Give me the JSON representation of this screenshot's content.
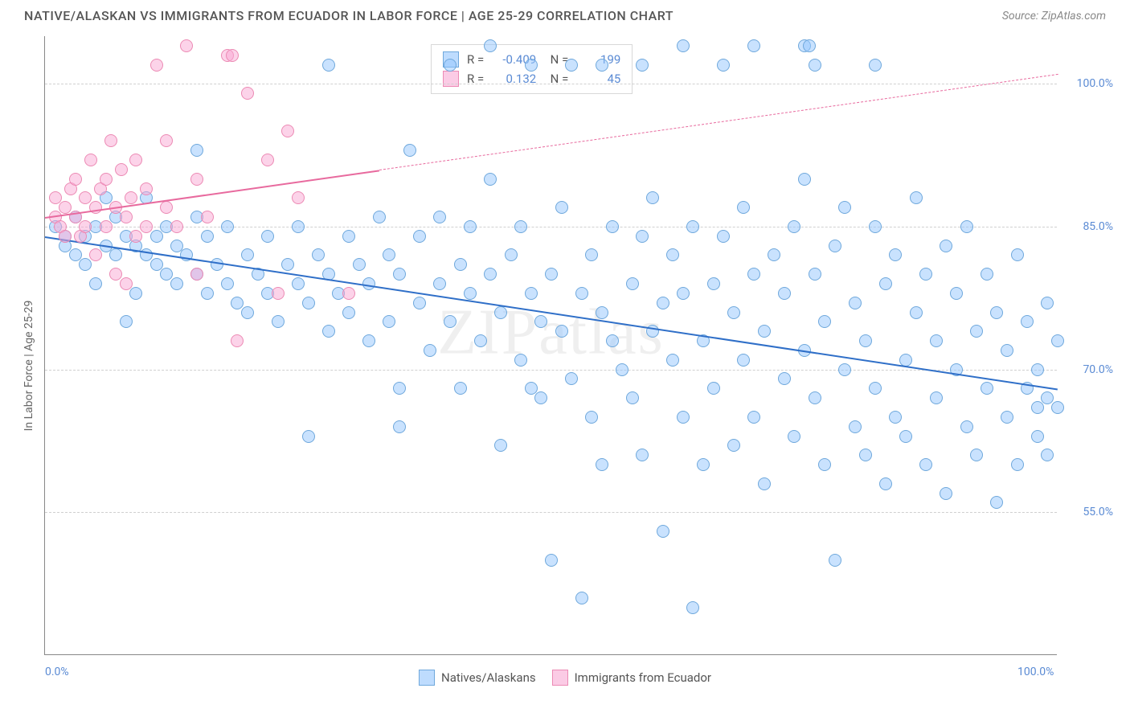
{
  "header": {
    "title": "NATIVE/ALASKAN VS IMMIGRANTS FROM ECUADOR IN LABOR FORCE | AGE 25-29 CORRELATION CHART",
    "source": "Source: ZipAtlas.com"
  },
  "chart": {
    "type": "scatter",
    "ylabel": "In Labor Force | Age 25-29",
    "watermark": "ZIPatlas",
    "background_color": "#ffffff",
    "grid_color": "#d0d0d0",
    "axis_color": "#888888",
    "xlim": [
      0,
      100
    ],
    "ylim": [
      40,
      105
    ],
    "xticks": [
      {
        "value": 0,
        "label": "0.0%"
      },
      {
        "value": 100,
        "label": "100.0%"
      }
    ],
    "yticks": [
      {
        "value": 55,
        "label": "55.0%"
      },
      {
        "value": 70,
        "label": "70.0%"
      },
      {
        "value": 85,
        "label": "85.0%"
      },
      {
        "value": 100,
        "label": "100.0%"
      }
    ],
    "series": [
      {
        "name": "Natives/Alaskans",
        "color_fill": "rgba(147,197,253,0.5)",
        "color_stroke": "#6fa8dc",
        "marker_size": 16,
        "correlation_R": "-0.409",
        "N": "199",
        "trend": {
          "x1": 0,
          "y1": 84,
          "x2": 100,
          "y2": 68,
          "color": "#2f6fc8",
          "solid_x2": 100
        },
        "points": [
          [
            1,
            85
          ],
          [
            2,
            84
          ],
          [
            2,
            83
          ],
          [
            3,
            86
          ],
          [
            3,
            82
          ],
          [
            4,
            84
          ],
          [
            4,
            81
          ],
          [
            5,
            85
          ],
          [
            5,
            79
          ],
          [
            6,
            83
          ],
          [
            6,
            88
          ],
          [
            7,
            82
          ],
          [
            7,
            86
          ],
          [
            8,
            84
          ],
          [
            8,
            75
          ],
          [
            9,
            83
          ],
          [
            9,
            78
          ],
          [
            10,
            82
          ],
          [
            10,
            88
          ],
          [
            11,
            81
          ],
          [
            11,
            84
          ],
          [
            12,
            80
          ],
          [
            12,
            85
          ],
          [
            13,
            79
          ],
          [
            13,
            83
          ],
          [
            14,
            82
          ],
          [
            15,
            80
          ],
          [
            15,
            86
          ],
          [
            16,
            78
          ],
          [
            16,
            84
          ],
          [
            17,
            81
          ],
          [
            18,
            79
          ],
          [
            18,
            85
          ],
          [
            19,
            77
          ],
          [
            20,
            82
          ],
          [
            20,
            76
          ],
          [
            21,
            80
          ],
          [
            22,
            78
          ],
          [
            22,
            84
          ],
          [
            23,
            75
          ],
          [
            24,
            81
          ],
          [
            25,
            79
          ],
          [
            25,
            85
          ],
          [
            26,
            77
          ],
          [
            26,
            63
          ],
          [
            27,
            82
          ],
          [
            28,
            74
          ],
          [
            28,
            80
          ],
          [
            29,
            78
          ],
          [
            30,
            76
          ],
          [
            30,
            84
          ],
          [
            31,
            81
          ],
          [
            32,
            73
          ],
          [
            32,
            79
          ],
          [
            33,
            86
          ],
          [
            34,
            75
          ],
          [
            34,
            82
          ],
          [
            35,
            80
          ],
          [
            35,
            68
          ],
          [
            36,
            93
          ],
          [
            37,
            77
          ],
          [
            37,
            84
          ],
          [
            38,
            72
          ],
          [
            39,
            79
          ],
          [
            39,
            86
          ],
          [
            40,
            75
          ],
          [
            41,
            81
          ],
          [
            41,
            68
          ],
          [
            42,
            78
          ],
          [
            42,
            85
          ],
          [
            43,
            73
          ],
          [
            44,
            80
          ],
          [
            44,
            90
          ],
          [
            45,
            76
          ],
          [
            45,
            62
          ],
          [
            46,
            82
          ],
          [
            47,
            71
          ],
          [
            47,
            85
          ],
          [
            48,
            78
          ],
          [
            48,
            68
          ],
          [
            49,
            67
          ],
          [
            49,
            75
          ],
          [
            50,
            50
          ],
          [
            50,
            80
          ],
          [
            51,
            74
          ],
          [
            51,
            87
          ],
          [
            52,
            69
          ],
          [
            53,
            78
          ],
          [
            53,
            46
          ],
          [
            54,
            65
          ],
          [
            54,
            82
          ],
          [
            55,
            76
          ],
          [
            55,
            60
          ],
          [
            56,
            73
          ],
          [
            56,
            85
          ],
          [
            57,
            70
          ],
          [
            58,
            79
          ],
          [
            58,
            67
          ],
          [
            59,
            61
          ],
          [
            59,
            84
          ],
          [
            60,
            74
          ],
          [
            60,
            88
          ],
          [
            61,
            77
          ],
          [
            61,
            53
          ],
          [
            62,
            71
          ],
          [
            62,
            82
          ],
          [
            63,
            65
          ],
          [
            63,
            78
          ],
          [
            64,
            85
          ],
          [
            64,
            45
          ],
          [
            65,
            73
          ],
          [
            65,
            60
          ],
          [
            66,
            79
          ],
          [
            66,
            68
          ],
          [
            67,
            84
          ],
          [
            68,
            76
          ],
          [
            68,
            62
          ],
          [
            69,
            71
          ],
          [
            69,
            87
          ],
          [
            70,
            104
          ],
          [
            70,
            65
          ],
          [
            70,
            80
          ],
          [
            71,
            74
          ],
          [
            71,
            58
          ],
          [
            72,
            82
          ],
          [
            73,
            69
          ],
          [
            73,
            78
          ],
          [
            74,
            85
          ],
          [
            74,
            63
          ],
          [
            75,
            72
          ],
          [
            75,
            90
          ],
          [
            76,
            67
          ],
          [
            76,
            80
          ],
          [
            77,
            75
          ],
          [
            77,
            60
          ],
          [
            78,
            83
          ],
          [
            78,
            50
          ],
          [
            79,
            70
          ],
          [
            79,
            87
          ],
          [
            80,
            64
          ],
          [
            80,
            77
          ],
          [
            81,
            73
          ],
          [
            81,
            61
          ],
          [
            82,
            85
          ],
          [
            82,
            68
          ],
          [
            83,
            79
          ],
          [
            83,
            58
          ],
          [
            84,
            65
          ],
          [
            84,
            82
          ],
          [
            85,
            71
          ],
          [
            85,
            63
          ],
          [
            86,
            76
          ],
          [
            86,
            88
          ],
          [
            87,
            60
          ],
          [
            87,
            80
          ],
          [
            88,
            67
          ],
          [
            88,
            73
          ],
          [
            89,
            83
          ],
          [
            89,
            57
          ],
          [
            90,
            70
          ],
          [
            90,
            78
          ],
          [
            91,
            64
          ],
          [
            91,
            85
          ],
          [
            92,
            74
          ],
          [
            92,
            61
          ],
          [
            93,
            68
          ],
          [
            93,
            80
          ],
          [
            94,
            56
          ],
          [
            94,
            76
          ],
          [
            95,
            65
          ],
          [
            95,
            72
          ],
          [
            96,
            82
          ],
          [
            96,
            60
          ],
          [
            97,
            68
          ],
          [
            97,
            75
          ],
          [
            98,
            70
          ],
          [
            98,
            63
          ],
          [
            98,
            66
          ],
          [
            99,
            67
          ],
          [
            99,
            77
          ],
          [
            99,
            61
          ],
          [
            100,
            66
          ],
          [
            100,
            73
          ],
          [
            63,
            104
          ],
          [
            75,
            104
          ],
          [
            75.5,
            104
          ],
          [
            44,
            104
          ],
          [
            15,
            93
          ],
          [
            35,
            64
          ],
          [
            28,
            102
          ],
          [
            55,
            102
          ],
          [
            48,
            102
          ],
          [
            40,
            102
          ],
          [
            52,
            102
          ],
          [
            59,
            102
          ],
          [
            67,
            102
          ],
          [
            76,
            102
          ],
          [
            82,
            102
          ]
        ]
      },
      {
        "name": "Immigrants from Ecuador",
        "color_fill": "rgba(249,168,212,0.5)",
        "color_stroke": "#ec8ab4",
        "marker_size": 16,
        "correlation_R": "0.132",
        "N": "45",
        "trend": {
          "x1": 0,
          "y1": 86,
          "x2": 100,
          "y2": 101,
          "color": "#e86a9e",
          "solid_x2": 33
        },
        "points": [
          [
            1,
            86
          ],
          [
            1,
            88
          ],
          [
            1.5,
            85
          ],
          [
            2,
            87
          ],
          [
            2,
            84
          ],
          [
            2.5,
            89
          ],
          [
            3,
            86
          ],
          [
            3,
            90
          ],
          [
            3.5,
            84
          ],
          [
            4,
            88
          ],
          [
            4,
            85
          ],
          [
            4.5,
            92
          ],
          [
            5,
            87
          ],
          [
            5,
            82
          ],
          [
            5.5,
            89
          ],
          [
            6,
            90
          ],
          [
            6,
            85
          ],
          [
            6.5,
            94
          ],
          [
            7,
            87
          ],
          [
            7,
            80
          ],
          [
            7.5,
            91
          ],
          [
            8,
            86
          ],
          [
            8,
            79
          ],
          [
            8.5,
            88
          ],
          [
            9,
            84
          ],
          [
            9,
            92
          ],
          [
            10,
            85
          ],
          [
            10,
            89
          ],
          [
            11,
            102
          ],
          [
            12,
            87
          ],
          [
            12,
            94
          ],
          [
            13,
            85
          ],
          [
            14,
            104
          ],
          [
            15,
            80
          ],
          [
            15,
            90
          ],
          [
            16,
            86
          ],
          [
            18,
            103
          ],
          [
            18.5,
            103
          ],
          [
            19,
            73
          ],
          [
            20,
            99
          ],
          [
            22,
            92
          ],
          [
            23,
            78
          ],
          [
            24,
            95
          ],
          [
            25,
            88
          ],
          [
            30,
            78
          ]
        ]
      }
    ],
    "legend_bottom": [
      {
        "label": "Natives/Alaskans",
        "swatch": "blue"
      },
      {
        "label": "Immigrants from Ecuador",
        "swatch": "pink"
      }
    ],
    "tick_label_color": "#5b8bd4",
    "text_color": "#666666"
  }
}
